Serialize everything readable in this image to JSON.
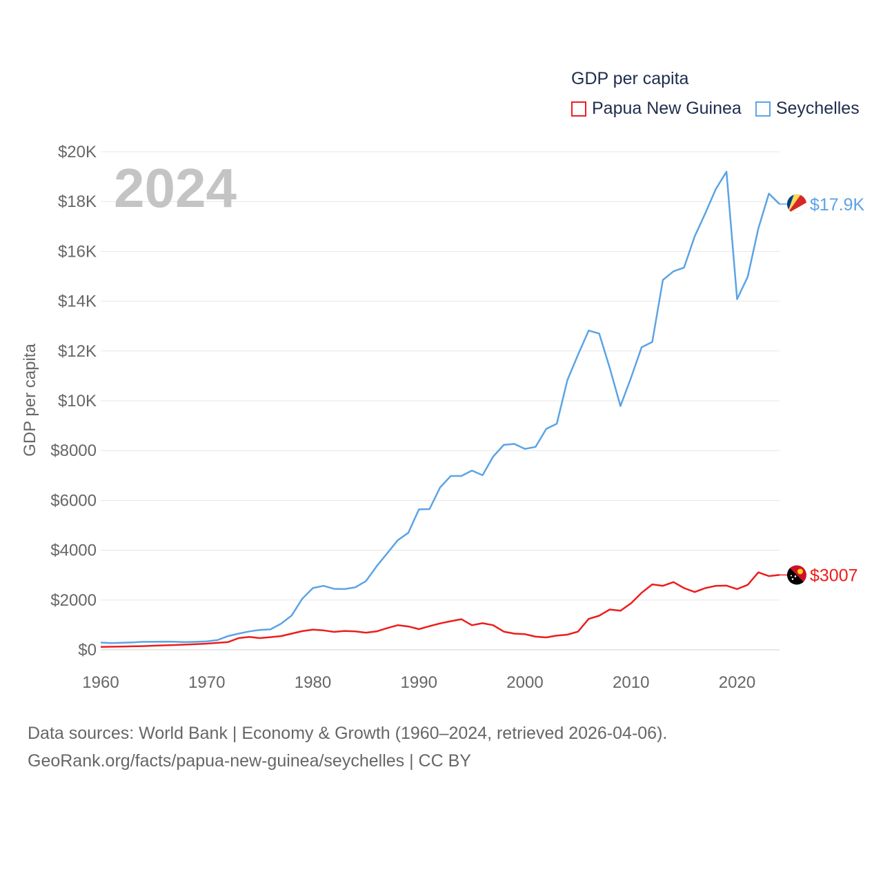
{
  "legend": {
    "title": "GDP per capita",
    "items": [
      {
        "label": "Papua New Guinea",
        "color": "#ee1c1c"
      },
      {
        "label": "Seychelles",
        "color": "#5ba3e6"
      }
    ]
  },
  "footer": {
    "line1": "Data sources: World Bank | Economy & Growth (1960–2024, retrieved 2026-04-06).",
    "line2": "GeoRank.org/facts/papua-new-guinea/seychelles | CC BY"
  },
  "chart_data": {
    "type": "line",
    "year_label": "2024",
    "ylabel": "GDP per capita",
    "xlim": [
      1960,
      2024
    ],
    "ylim": [
      0,
      20000
    ],
    "x_ticks": [
      1960,
      1970,
      1980,
      1990,
      2000,
      2010,
      2020
    ],
    "x_tick_labels": [
      "1960",
      "1970",
      "1980",
      "1990",
      "2000",
      "2010",
      "2020"
    ],
    "y_ticks": [
      0,
      2000,
      4000,
      6000,
      8000,
      10000,
      12000,
      14000,
      16000,
      18000,
      20000
    ],
    "y_tick_labels": [
      "$0",
      "$2000",
      "$4000",
      "$6000",
      "$8000",
      "$10K",
      "$12K",
      "$14K",
      "$16K",
      "$18K",
      "$20K"
    ],
    "x": [
      1960,
      1961,
      1962,
      1963,
      1964,
      1965,
      1966,
      1967,
      1968,
      1969,
      1970,
      1971,
      1972,
      1973,
      1974,
      1975,
      1976,
      1977,
      1978,
      1979,
      1980,
      1981,
      1982,
      1983,
      1984,
      1985,
      1986,
      1987,
      1988,
      1989,
      1990,
      1991,
      1992,
      1993,
      1994,
      1995,
      1996,
      1997,
      1998,
      1999,
      2000,
      2001,
      2002,
      2003,
      2004,
      2005,
      2006,
      2007,
      2008,
      2009,
      2010,
      2011,
      2012,
      2013,
      2014,
      2015,
      2016,
      2017,
      2018,
      2019,
      2020,
      2021,
      2022,
      2023,
      2024
    ],
    "series": [
      {
        "name": "Papua New Guinea",
        "color": "#ee1c1c",
        "end_label": "$3007",
        "values": [
          120,
          125,
          130,
          140,
          150,
          165,
          180,
          195,
          210,
          230,
          250,
          280,
          310,
          470,
          520,
          470,
          510,
          550,
          650,
          750,
          810,
          780,
          720,
          760,
          740,
          690,
          740,
          870,
          990,
          940,
          830,
          950,
          1060,
          1150,
          1230,
          990,
          1070,
          990,
          730,
          650,
          630,
          530,
          500,
          570,
          610,
          730,
          1240,
          1370,
          1620,
          1570,
          1870,
          2290,
          2630,
          2570,
          2720,
          2480,
          2320,
          2480,
          2570,
          2580,
          2440,
          2610,
          3110,
          2960,
          3007
        ]
      },
      {
        "name": "Seychelles",
        "color": "#5ba3e6",
        "end_label": "$17.9K",
        "values": [
          290,
          270,
          285,
          300,
          320,
          320,
          330,
          325,
          310,
          320,
          340,
          390,
          550,
          650,
          740,
          800,
          820,
          1050,
          1380,
          2050,
          2480,
          2570,
          2450,
          2440,
          2510,
          2760,
          3350,
          3870,
          4400,
          4700,
          5640,
          5650,
          6520,
          6980,
          6980,
          7200,
          7010,
          7760,
          8230,
          8270,
          8070,
          8150,
          8870,
          9080,
          10830,
          11850,
          12820,
          12700,
          11310,
          9790,
          10930,
          12150,
          12360,
          14850,
          15200,
          15350,
          16600,
          17530,
          18510,
          19200,
          14080,
          14980,
          16920,
          18320,
          17900
        ]
      }
    ]
  }
}
